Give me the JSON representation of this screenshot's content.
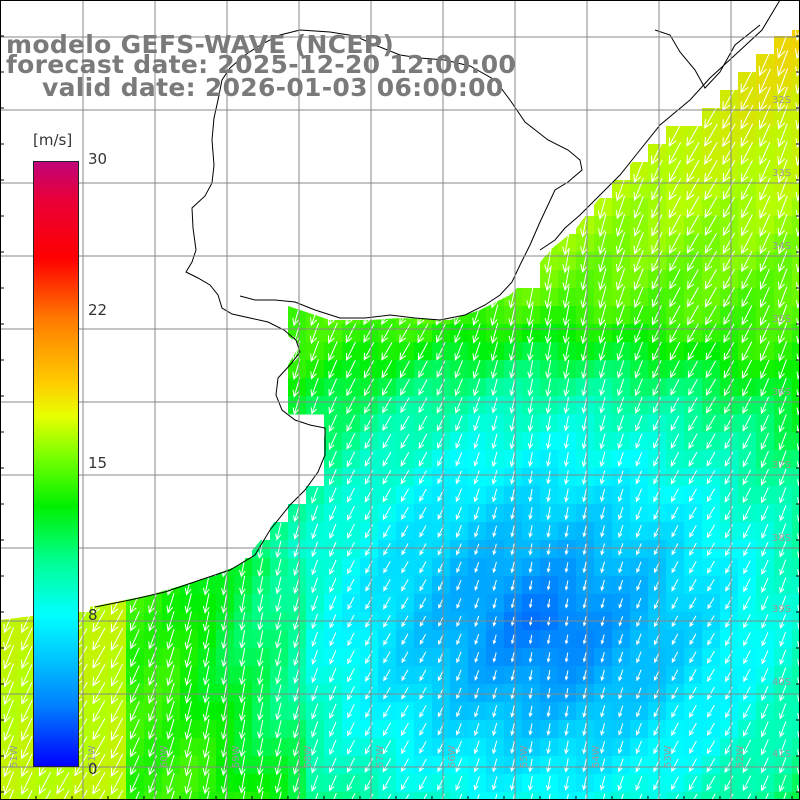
{
  "title": {
    "line1": "modelo GEFS-WAVE (NCEP)",
    "line2": "forecast date: 2025-12-20 12:00:00",
    "line3": "valid date: 2026-01-03 06:00:00"
  },
  "colorbar": {
    "units": "[m/s]",
    "ticks": [
      "30",
      "22",
      "15",
      "8",
      "0"
    ],
    "colors": [
      "#c0047a",
      "#ff0000",
      "#ff7a00",
      "#ffd000",
      "#66ff00",
      "#00f000",
      "#00ffff",
      "#0080ff",
      "#0000ff"
    ]
  },
  "lat_labels": [
    "32S",
    "33S",
    "34S",
    "35S",
    "36S",
    "37S",
    "38S",
    "39S",
    "40S",
    "41S"
  ],
  "lon_labels": [
    "61W",
    "60W",
    "59W",
    "58W",
    "57W",
    "56W",
    "55W",
    "54W",
    "53W",
    "52W",
    "51W"
  ],
  "colors": {
    "land": "#ffffff",
    "coastline": "#000000",
    "grid": "#888888",
    "arrows": "#ffffff",
    "title_text": "#7a7a7a"
  },
  "field": {
    "quantity": "wind speed",
    "units": "m/s",
    "range": [
      0,
      30
    ],
    "arrow_direction": "toward south-southwest"
  }
}
